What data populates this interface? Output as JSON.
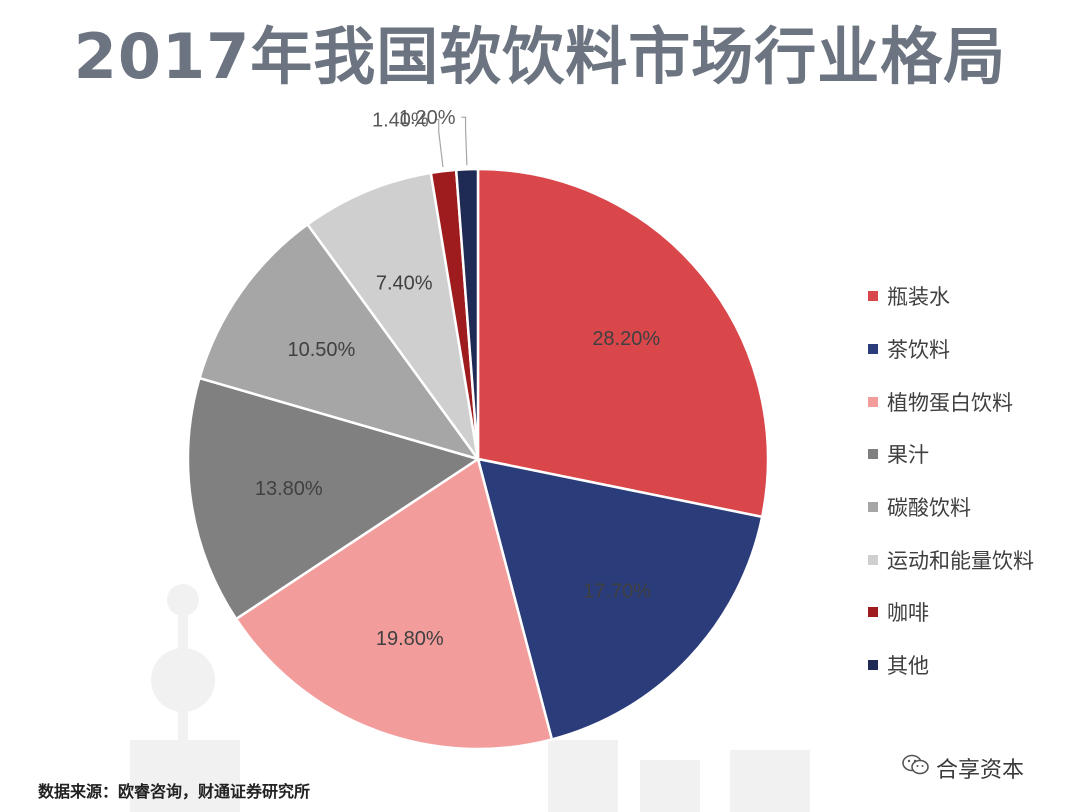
{
  "chart_data": {
    "type": "pie",
    "title": "2017年我国软饮料市场行业格局",
    "labels": [
      "瓶装水",
      "茶饮料",
      "植物蛋白饮料",
      "果汁",
      "碳酸饮料",
      "运动和能量饮料",
      "咖啡",
      "其他"
    ],
    "values": [
      28.2,
      17.7,
      19.8,
      13.8,
      10.5,
      7.4,
      1.4,
      1.2
    ],
    "value_labels": [
      "28.20%",
      "17.70%",
      "19.80%",
      "13.80%",
      "10.50%",
      "7.40%",
      "1.40%",
      "1.20%"
    ],
    "colors": [
      "#d9474b",
      "#2b3c7a",
      "#f29c9c",
      "#808080",
      "#a6a6a6",
      "#cfcfcf",
      "#9e1b1e",
      "#1f2a55"
    ],
    "legend_position": "right",
    "start": "top, clockwise"
  },
  "source_text": "数据来源：欧睿咨询，财通证券研究所",
  "watermark_text": "合享资本"
}
